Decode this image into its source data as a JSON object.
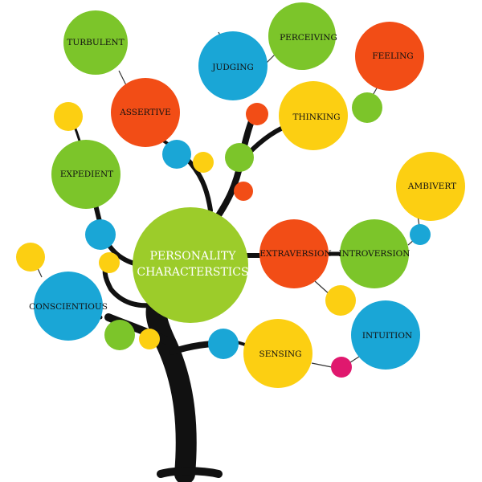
{
  "diagram": {
    "center": {
      "line1": "PERSONALITY",
      "line2": "CHARACTERSTICS",
      "color": "#9ccc2a"
    },
    "nodes": [
      {
        "id": "turbulent",
        "label": "TURBULENT",
        "color": "#7cc52a"
      },
      {
        "id": "perceiving",
        "label": "PERCEIVING",
        "color": "#7cc52a"
      },
      {
        "id": "judging",
        "label": "JUDGING",
        "color": "#1aa6d6"
      },
      {
        "id": "feeling",
        "label": "FEELING",
        "color": "#f24d16"
      },
      {
        "id": "assertive",
        "label": "ASSERTIVE",
        "color": "#f24d16"
      },
      {
        "id": "thinking",
        "label": "THINKING",
        "color": "#fccf12"
      },
      {
        "id": "expedient",
        "label": "EXPEDIENT",
        "color": "#7cc52a"
      },
      {
        "id": "ambivert",
        "label": "AMBIVERT",
        "color": "#fccf12"
      },
      {
        "id": "extraversion",
        "label": "EXTRAVERSION",
        "color": "#f24d16"
      },
      {
        "id": "introversion",
        "label": "INTROVERSION",
        "color": "#7cc52a"
      },
      {
        "id": "conscientious",
        "label": "CONSCIENTIOUS",
        "color": "#1aa6d6"
      },
      {
        "id": "intuition",
        "label": "INTUITION",
        "color": "#1aa6d6"
      },
      {
        "id": "sensing",
        "label": "SENSING",
        "color": "#fccf12"
      }
    ],
    "palette": {
      "green": "#7cc52a",
      "blue": "#1aa6d6",
      "orange": "#f24d16",
      "yellow": "#fccf12",
      "magenta": "#e0186e",
      "trunk": "#111111"
    }
  }
}
